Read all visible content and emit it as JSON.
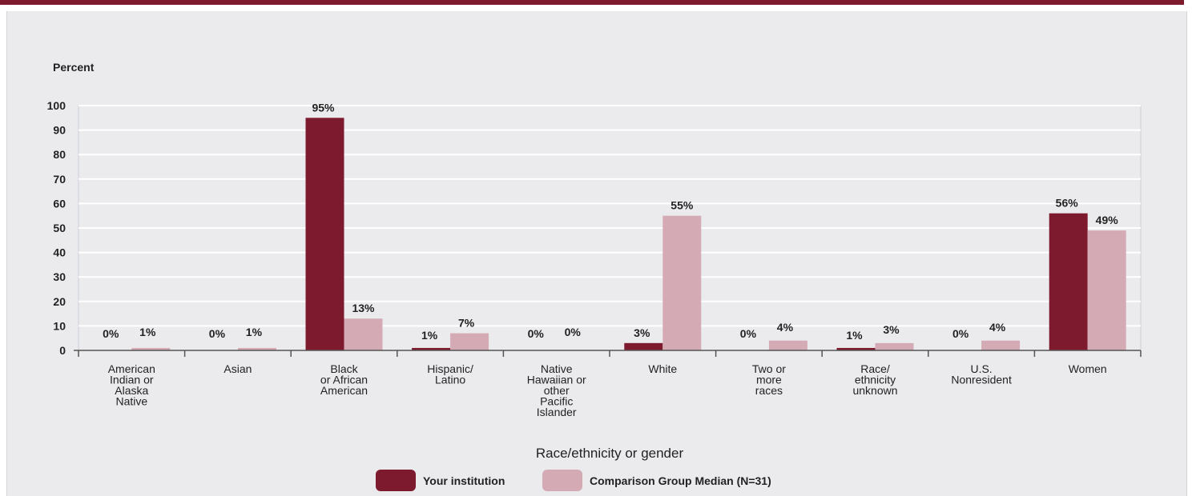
{
  "colors": {
    "institution": "#7e1a2e",
    "comparison": "#d4abb5",
    "grid": "#ffffff",
    "axis": "#555555",
    "accent_bar": "#7e1a2e",
    "panel_bg": "#ebebee"
  },
  "chart_data": {
    "type": "bar",
    "ylabel": "Percent",
    "xlabel": "Race/ethnicity or gender",
    "ylim": [
      0,
      100
    ],
    "yticks": [
      0,
      10,
      20,
      30,
      40,
      50,
      60,
      70,
      80,
      90,
      100
    ],
    "grid": true,
    "legend_position": "bottom",
    "categories": [
      [
        "American",
        "Indian or",
        "Alaska",
        "Native"
      ],
      [
        "Asian"
      ],
      [
        "Black",
        "or African",
        "American"
      ],
      [
        "Hispanic/",
        "Latino"
      ],
      [
        "Native",
        "Hawaiian or",
        "other",
        "Pacific",
        "Islander"
      ],
      [
        "White"
      ],
      [
        "Two or",
        "more",
        "races"
      ],
      [
        "Race/",
        "ethnicity",
        "unknown"
      ],
      [
        "U.S.",
        "Nonresident"
      ],
      [
        "Women"
      ]
    ],
    "series": [
      {
        "name": "Your institution",
        "values": [
          0,
          0,
          95,
          1,
          0,
          3,
          0,
          1,
          0,
          56
        ],
        "labels": [
          "0%",
          "0%",
          "95%",
          "1%",
          "0%",
          "3%",
          "0%",
          "1%",
          "0%",
          "56%"
        ]
      },
      {
        "name": "Comparison Group Median (N=31)",
        "values": [
          1,
          1,
          13,
          7,
          0,
          55,
          4,
          3,
          4,
          49
        ],
        "labels": [
          "1%",
          "1%",
          "13%",
          "7%",
          "0%",
          "55%",
          "4%",
          "3%",
          "4%",
          "49%"
        ]
      }
    ]
  }
}
